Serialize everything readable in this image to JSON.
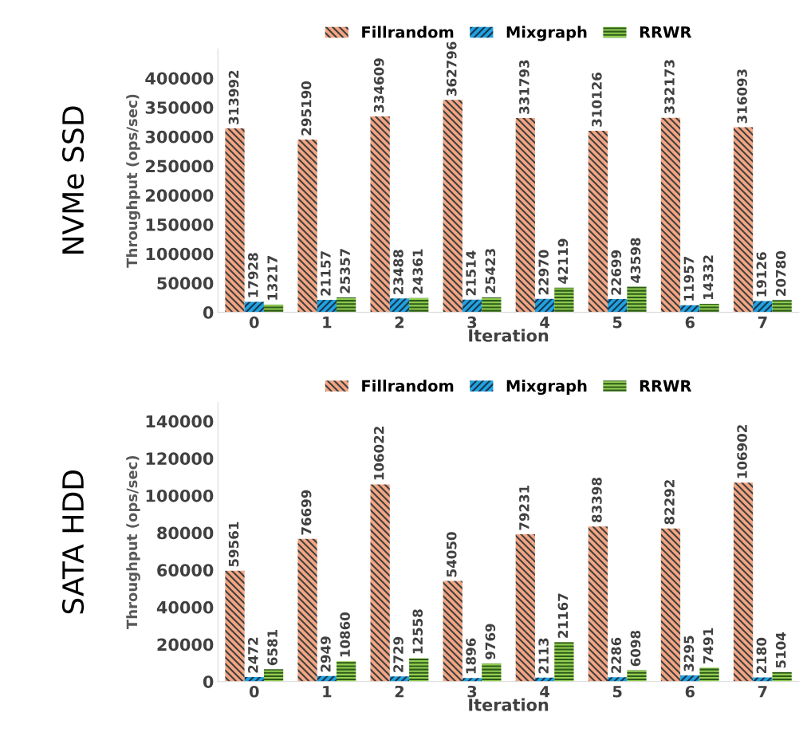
{
  "chart_data": [
    {
      "type": "bar",
      "title": "NVMe SSD",
      "xlabel": "Iteration",
      "ylabel": "Throughput (ops/sec)",
      "categories": [
        "0",
        "1",
        "2",
        "3",
        "4",
        "5",
        "6",
        "7"
      ],
      "series": [
        {
          "name": "Fillrandom",
          "color": "#f4a582",
          "values": [
            313992,
            295190,
            334609,
            362796,
            331793,
            310126,
            332173,
            316093
          ]
        },
        {
          "name": "Mixgraph",
          "color": "#1fa3e0",
          "values": [
            17928,
            21157,
            23488,
            21514,
            22970,
            22699,
            11957,
            19126
          ]
        },
        {
          "name": "RRWR",
          "color": "#92d050",
          "values": [
            13217,
            25357,
            24361,
            25423,
            42119,
            43598,
            14332,
            20780
          ]
        }
      ],
      "ylim": [
        0,
        450000
      ],
      "yticks": [
        0,
        50000,
        100000,
        150000,
        200000,
        250000,
        300000,
        350000,
        400000
      ],
      "data_labels": true,
      "legend": "top",
      "grid": false
    },
    {
      "type": "bar",
      "title": "SATA HDD",
      "xlabel": "Iteration",
      "ylabel": "Throughput (ops/sec)",
      "categories": [
        "0",
        "1",
        "2",
        "3",
        "4",
        "5",
        "6",
        "7"
      ],
      "series": [
        {
          "name": "Fillrandom",
          "color": "#f4a582",
          "values": [
            59561,
            76699,
            106022,
            54050,
            79231,
            83398,
            82292,
            106902
          ]
        },
        {
          "name": "Mixgraph",
          "color": "#1fa3e0",
          "values": [
            2472,
            2949,
            2729,
            1896,
            2113,
            2286,
            3295,
            2180
          ]
        },
        {
          "name": "RRWR",
          "color": "#92d050",
          "values": [
            6581,
            10860,
            12558,
            9769,
            21167,
            6098,
            7491,
            5104
          ]
        }
      ],
      "ylim": [
        0,
        150000
      ],
      "yticks": [
        0,
        20000,
        40000,
        60000,
        80000,
        100000,
        120000,
        140000
      ],
      "data_labels": true,
      "legend": "top",
      "grid": false
    }
  ]
}
